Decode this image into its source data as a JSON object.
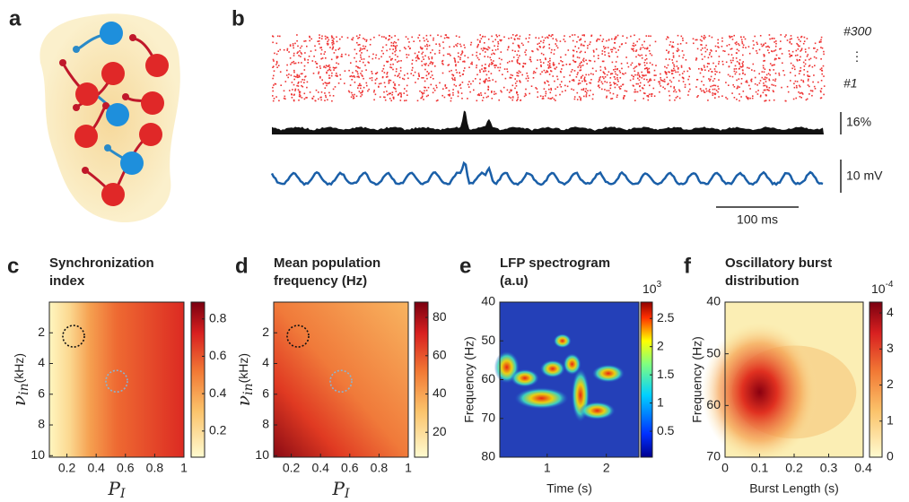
{
  "panel_labels": [
    "a",
    "b",
    "c",
    "d",
    "e",
    "f"
  ],
  "raster": {
    "neuron_labels": [
      "#300",
      "⋮",
      "#1"
    ],
    "rate_scale": "16%",
    "voltage_scale": "10 mV",
    "time_scale": "100 ms"
  },
  "chart_data": [
    {
      "type": "heatmap",
      "title": [
        "Synchronization",
        "index"
      ],
      "xlabel": {
        "text": "P",
        "sub": "I"
      },
      "ylabel": {
        "text": "ν",
        "sub": "in",
        "unit": "(kHz)"
      },
      "xlim": [
        0.08,
        1
      ],
      "xticks": [
        0.2,
        0.4,
        0.6,
        0.8,
        1
      ],
      "ylim": [
        0,
        10.1
      ],
      "yticks": [
        2,
        4,
        6,
        8,
        10
      ],
      "y_inverted": true,
      "colormap": "hot",
      "clim": [
        0.06,
        0.89
      ],
      "cticks": [
        0.2,
        0.4,
        0.6,
        0.8
      ]
    },
    {
      "type": "heatmap",
      "title": [
        "Mean population",
        "frequency (Hz)"
      ],
      "xlabel": {
        "text": "P",
        "sub": "I"
      },
      "ylabel": {
        "text": "ν",
        "sub": "in",
        "unit": "(kHz)"
      },
      "xlim": [
        0.08,
        1
      ],
      "xticks": [
        0.2,
        0.4,
        0.6,
        0.8,
        1
      ],
      "ylim": [
        0,
        10.1
      ],
      "yticks": [
        2,
        4,
        6,
        8,
        10
      ],
      "y_inverted": true,
      "colormap": "hot",
      "clim": [
        7,
        88
      ],
      "cticks": [
        20,
        40,
        60,
        80
      ]
    },
    {
      "type": "heatmap",
      "title": [
        "LFP spectrogram",
        "(a.u)"
      ],
      "xlabel": "Time (s)",
      "ylabel": "Frequency (Hz)",
      "xlim": [
        0.2,
        2.55
      ],
      "xticks": [
        1,
        2
      ],
      "ylim": [
        40,
        80
      ],
      "yticks": [
        40,
        50,
        60,
        70,
        80
      ],
      "y_inverted": true,
      "colormap": "jet",
      "clim": [
        0.04,
        2.79
      ],
      "cticks": [
        0.5,
        1,
        1.5,
        2,
        2.5
      ],
      "cmultiplier": {
        "base": "10",
        "exponent": "3"
      }
    },
    {
      "type": "heatmap",
      "title": [
        "Oscillatory burst",
        "distribution"
      ],
      "xlabel": "Burst Length (s)",
      "ylabel": "Frequency (Hz)",
      "xlim": [
        0,
        0.4
      ],
      "xticks": [
        0,
        0.1,
        0.2,
        0.3,
        0.4
      ],
      "ylim": [
        40,
        70
      ],
      "yticks": [
        40,
        50,
        60,
        70
      ],
      "y_inverted": true,
      "colormap": "hot",
      "clim": [
        0,
        4.3
      ],
      "cticks": [
        0,
        1,
        2,
        3,
        4
      ],
      "cmultiplier": {
        "base": "10",
        "exponent": "-4"
      }
    }
  ]
}
